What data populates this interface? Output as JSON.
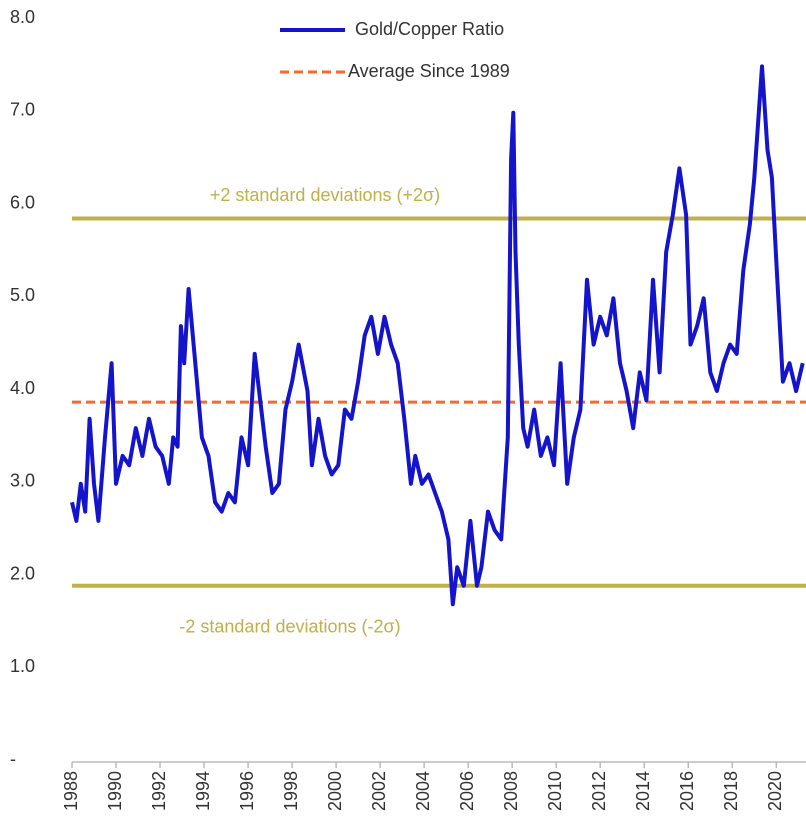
{
  "chart_data": {
    "type": "line",
    "series": [
      {
        "name": "Gold/Copper Ratio",
        "color": "#1414cc",
        "x": [
          1988.0,
          1988.2,
          1988.4,
          1988.6,
          1988.8,
          1989.0,
          1989.2,
          1989.5,
          1989.8,
          1990.0,
          1990.3,
          1990.6,
          1990.9,
          1991.2,
          1991.5,
          1991.8,
          1992.1,
          1992.4,
          1992.6,
          1992.8,
          1992.95,
          1993.1,
          1993.3,
          1993.6,
          1993.9,
          1994.2,
          1994.5,
          1994.8,
          1995.1,
          1995.4,
          1995.7,
          1996.0,
          1996.3,
          1996.5,
          1996.8,
          1997.1,
          1997.4,
          1997.7,
          1998.0,
          1998.3,
          1998.7,
          1998.9,
          1999.2,
          1999.5,
          1999.8,
          2000.1,
          2000.4,
          2000.7,
          2001.0,
          2001.3,
          2001.6,
          2001.9,
          2002.2,
          2002.5,
          2002.8,
          2003.1,
          2003.4,
          2003.6,
          2003.9,
          2004.2,
          2004.5,
          2004.8,
          2005.1,
          2005.3,
          2005.5,
          2005.8,
          2006.1,
          2006.4,
          2006.6,
          2006.9,
          2007.2,
          2007.5,
          2007.8,
          2007.95,
          2008.05,
          2008.15,
          2008.3,
          2008.5,
          2008.7,
          2009.0,
          2009.3,
          2009.6,
          2009.9,
          2010.2,
          2010.5,
          2010.8,
          2011.1,
          2011.4,
          2011.7,
          2012.0,
          2012.3,
          2012.6,
          2012.9,
          2013.2,
          2013.5,
          2013.8,
          2014.1,
          2014.4,
          2014.7,
          2015.0,
          2015.3,
          2015.6,
          2015.9,
          2016.1,
          2016.4,
          2016.7,
          2017.0,
          2017.3,
          2017.6,
          2017.9,
          2018.2,
          2018.5,
          2018.8,
          2019.0,
          2019.35,
          2019.6,
          2019.8,
          2020.0,
          2020.3,
          2020.6,
          2020.9,
          2021.2
        ],
        "values": [
          2.8,
          2.6,
          3.0,
          2.7,
          3.7,
          3.0,
          2.6,
          3.5,
          4.3,
          3.0,
          3.3,
          3.2,
          3.6,
          3.3,
          3.7,
          3.4,
          3.3,
          3.0,
          3.5,
          3.4,
          4.7,
          4.3,
          5.1,
          4.3,
          3.5,
          3.3,
          2.8,
          2.7,
          2.9,
          2.8,
          3.5,
          3.2,
          4.4,
          4.0,
          3.4,
          2.9,
          3.0,
          3.8,
          4.1,
          4.5,
          4.0,
          3.2,
          3.7,
          3.3,
          3.1,
          3.2,
          3.8,
          3.7,
          4.1,
          4.6,
          4.8,
          4.4,
          4.8,
          4.5,
          4.3,
          3.7,
          3.0,
          3.3,
          3.0,
          3.1,
          2.9,
          2.7,
          2.4,
          1.7,
          2.1,
          1.9,
          2.6,
          1.9,
          2.1,
          2.7,
          2.5,
          2.4,
          3.5,
          6.5,
          7.0,
          5.5,
          4.5,
          3.6,
          3.4,
          3.8,
          3.3,
          3.5,
          3.2,
          4.3,
          3.0,
          3.5,
          3.8,
          5.2,
          4.5,
          4.8,
          4.6,
          5.0,
          4.3,
          4.0,
          3.6,
          4.2,
          3.9,
          5.2,
          4.2,
          5.5,
          5.9,
          6.4,
          5.9,
          4.5,
          4.7,
          5.0,
          4.2,
          4.0,
          4.3,
          4.5,
          4.4,
          5.3,
          5.8,
          6.3,
          7.5,
          6.6,
          6.3,
          5.4,
          4.1,
          4.3,
          4.0,
          4.3
        ]
      }
    ],
    "hlines": [
      {
        "name": "Average Since 1989",
        "value": 3.88,
        "color": "#f26a2e",
        "style": "dashed"
      },
      {
        "label": "+2 standard deviations (+2σ)",
        "value": 5.86,
        "color": "#bfb04a",
        "style": "solid"
      },
      {
        "label": "-2 standard deviations (-2σ)",
        "value": 1.9,
        "color": "#bfb04a",
        "style": "solid"
      }
    ],
    "xlim": [
      1988,
      2021.35
    ],
    "xticks": [
      1988,
      1990,
      1992,
      1994,
      1996,
      1998,
      2000,
      2002,
      2004,
      2006,
      2008,
      2010,
      2012,
      2014,
      2016,
      2018,
      2020
    ],
    "ylim": [
      0,
      8
    ],
    "yticks": [
      {
        "value": 0,
        "label": "-"
      },
      {
        "value": 1,
        "label": "1.0"
      },
      {
        "value": 2,
        "label": "2.0"
      },
      {
        "value": 3,
        "label": "3.0"
      },
      {
        "value": 4,
        "label": "4.0"
      },
      {
        "value": 5,
        "label": "5.0"
      },
      {
        "value": 6,
        "label": "6.0"
      },
      {
        "value": 7,
        "label": "7.0"
      },
      {
        "value": 8,
        "label": "8.0"
      }
    ]
  }
}
